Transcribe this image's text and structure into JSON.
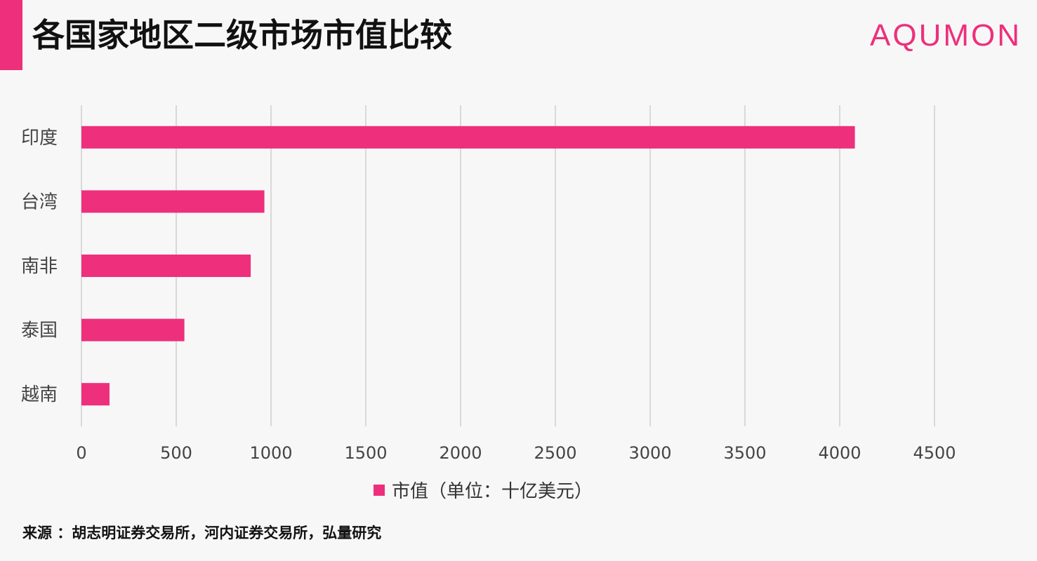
{
  "header": {
    "title": "各国家地区二级市场市值比较",
    "logo": "AQUMON"
  },
  "colors": {
    "accent": "#ee2f7c",
    "bar": "#ee2f7c",
    "grid": "#d9d9d9"
  },
  "chart_data": {
    "type": "bar",
    "orientation": "horizontal",
    "categories": [
      "印度",
      "台湾",
      "南非",
      "泰国",
      "越南"
    ],
    "series": [
      {
        "name": "市值（单位：十亿美元）",
        "values": [
          4080,
          965,
          893,
          543,
          148
        ]
      }
    ],
    "xlim": [
      0,
      4500
    ],
    "xticks": [
      "0",
      "500",
      "1000",
      "1500",
      "2000",
      "2500",
      "3000",
      "3500",
      "4000",
      "4500"
    ],
    "grid": true,
    "legend": "bottom"
  },
  "footer": {
    "source": "来源 ：胡志明证券交易所，河内证券交易所，弘量研究"
  }
}
